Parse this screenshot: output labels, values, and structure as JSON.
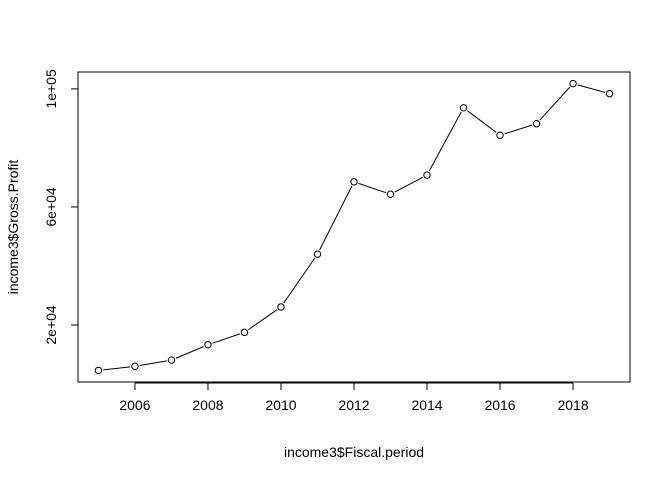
{
  "chart_data": {
    "type": "line",
    "title": "",
    "xlabel": "income3$Fiscal.period",
    "ylabel": "income3$Gross.Profit",
    "x": [
      2005,
      2006,
      2007,
      2008,
      2009,
      2010,
      2011,
      2012,
      2013,
      2014,
      2015,
      2016,
      2017,
      2018,
      2019
    ],
    "series": [
      {
        "values": [
          4600,
          6000,
          8100,
          13300,
          17500,
          26100,
          44000,
          68500,
          64300,
          70800,
          93600,
          84300,
          88200,
          101800,
          98400
        ]
      }
    ],
    "x_ticks": [
      2006,
      2008,
      2010,
      2012,
      2014,
      2016,
      2018
    ],
    "x_tick_labels": [
      "2006",
      "2008",
      "2010",
      "2012",
      "2014",
      "2016",
      "2018"
    ],
    "y_ticks": [
      20000,
      60000,
      100000
    ],
    "y_tick_labels": [
      "2e+04",
      "6e+04",
      "1e+05"
    ],
    "xlim": [
      2004.44,
      2019.56
    ],
    "ylim": [
      675.2,
      105726.4
    ],
    "markers": "open-circle",
    "grid": false,
    "line_color": "#000000"
  }
}
